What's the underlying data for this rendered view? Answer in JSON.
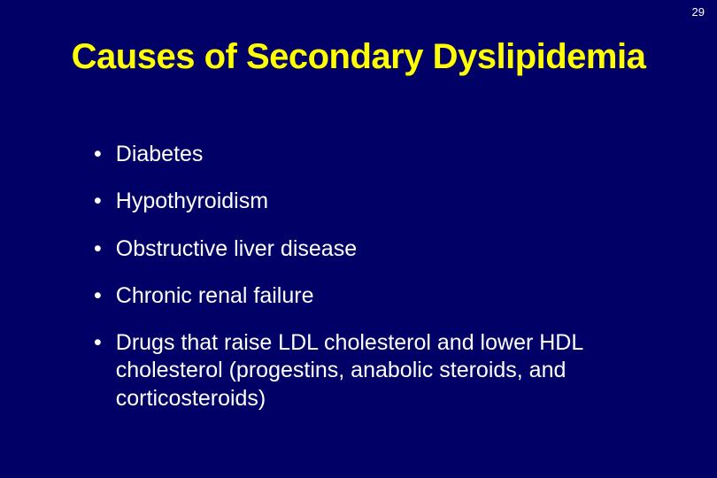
{
  "page_number": "29",
  "title": "Causes of Secondary Dyslipidemia",
  "background_color": "#000066",
  "title_color": "#ffff00",
  "text_color": "#ffffff",
  "title_fontsize": 40,
  "body_fontsize": 25,
  "bullets": [
    "Diabetes",
    "Hypothyroidism",
    "Obstructive liver disease",
    "Chronic renal failure",
    "Drugs that raise LDL cholesterol and lower HDL cholesterol (progestins, anabolic steroids, and corticosteroids)"
  ]
}
